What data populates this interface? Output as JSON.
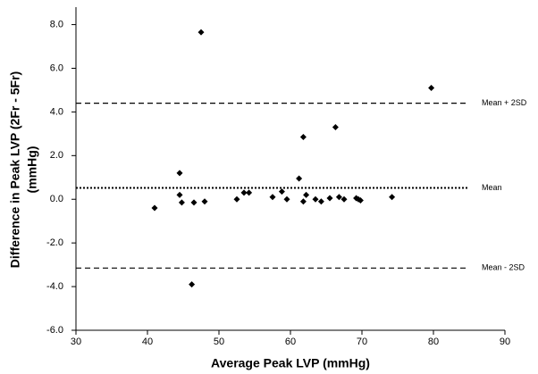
{
  "chart_data": {
    "type": "scatter",
    "xlabel": "Average Peak LVP (mmHg)",
    "ylabel": [
      "Difference in Peak LVP (2Fr - 5Fr)",
      "(mmHg)"
    ],
    "xlim": [
      30,
      90
    ],
    "xticks": [
      30,
      40,
      50,
      60,
      70,
      80,
      90
    ],
    "ylim": [
      -6,
      8.8
    ],
    "yticks": [
      {
        "value": -6,
        "label": "-6.0"
      },
      {
        "value": -4,
        "label": "-4.0"
      },
      {
        "value": -2,
        "label": "-2.0"
      },
      {
        "value": 0,
        "label": "0.0"
      },
      {
        "value": 2,
        "label": "2.0"
      },
      {
        "value": 4,
        "label": "4.0"
      },
      {
        "value": 6,
        "label": "6.0"
      },
      {
        "value": 8,
        "label": "8.0"
      }
    ],
    "color": "#000000",
    "x": [
      41,
      44.5,
      44.5,
      44.8,
      46.5,
      48,
      47.5,
      46.2,
      52.5,
      53.5,
      54.2,
      57.5,
      58.8,
      59.5,
      61.2,
      61.8,
      61.8,
      62.2,
      63.5,
      64.3,
      65.5,
      66.3,
      66.8,
      67.5,
      69.2,
      69.5,
      69.8,
      74.2,
      79.7
    ],
    "values": [
      -0.4,
      1.2,
      0.2,
      -0.15,
      -0.15,
      -0.1,
      7.65,
      -3.9,
      0.0,
      0.3,
      0.3,
      0.1,
      0.35,
      0.0,
      0.95,
      -0.1,
      2.85,
      0.2,
      0.0,
      -0.1,
      0.05,
      3.3,
      0.1,
      0.0,
      0.05,
      0.0,
      -0.05,
      0.1,
      5.1
    ],
    "reference_lines": [
      {
        "label": "Mean + 2SD",
        "value": 4.4,
        "style": "dashed"
      },
      {
        "label": "Mean",
        "value": 0.52,
        "style": "dotted"
      },
      {
        "label": "Mean - 2SD",
        "value": -3.15,
        "style": "dashed"
      }
    ],
    "reference_xrange": [
      30,
      85
    ]
  }
}
